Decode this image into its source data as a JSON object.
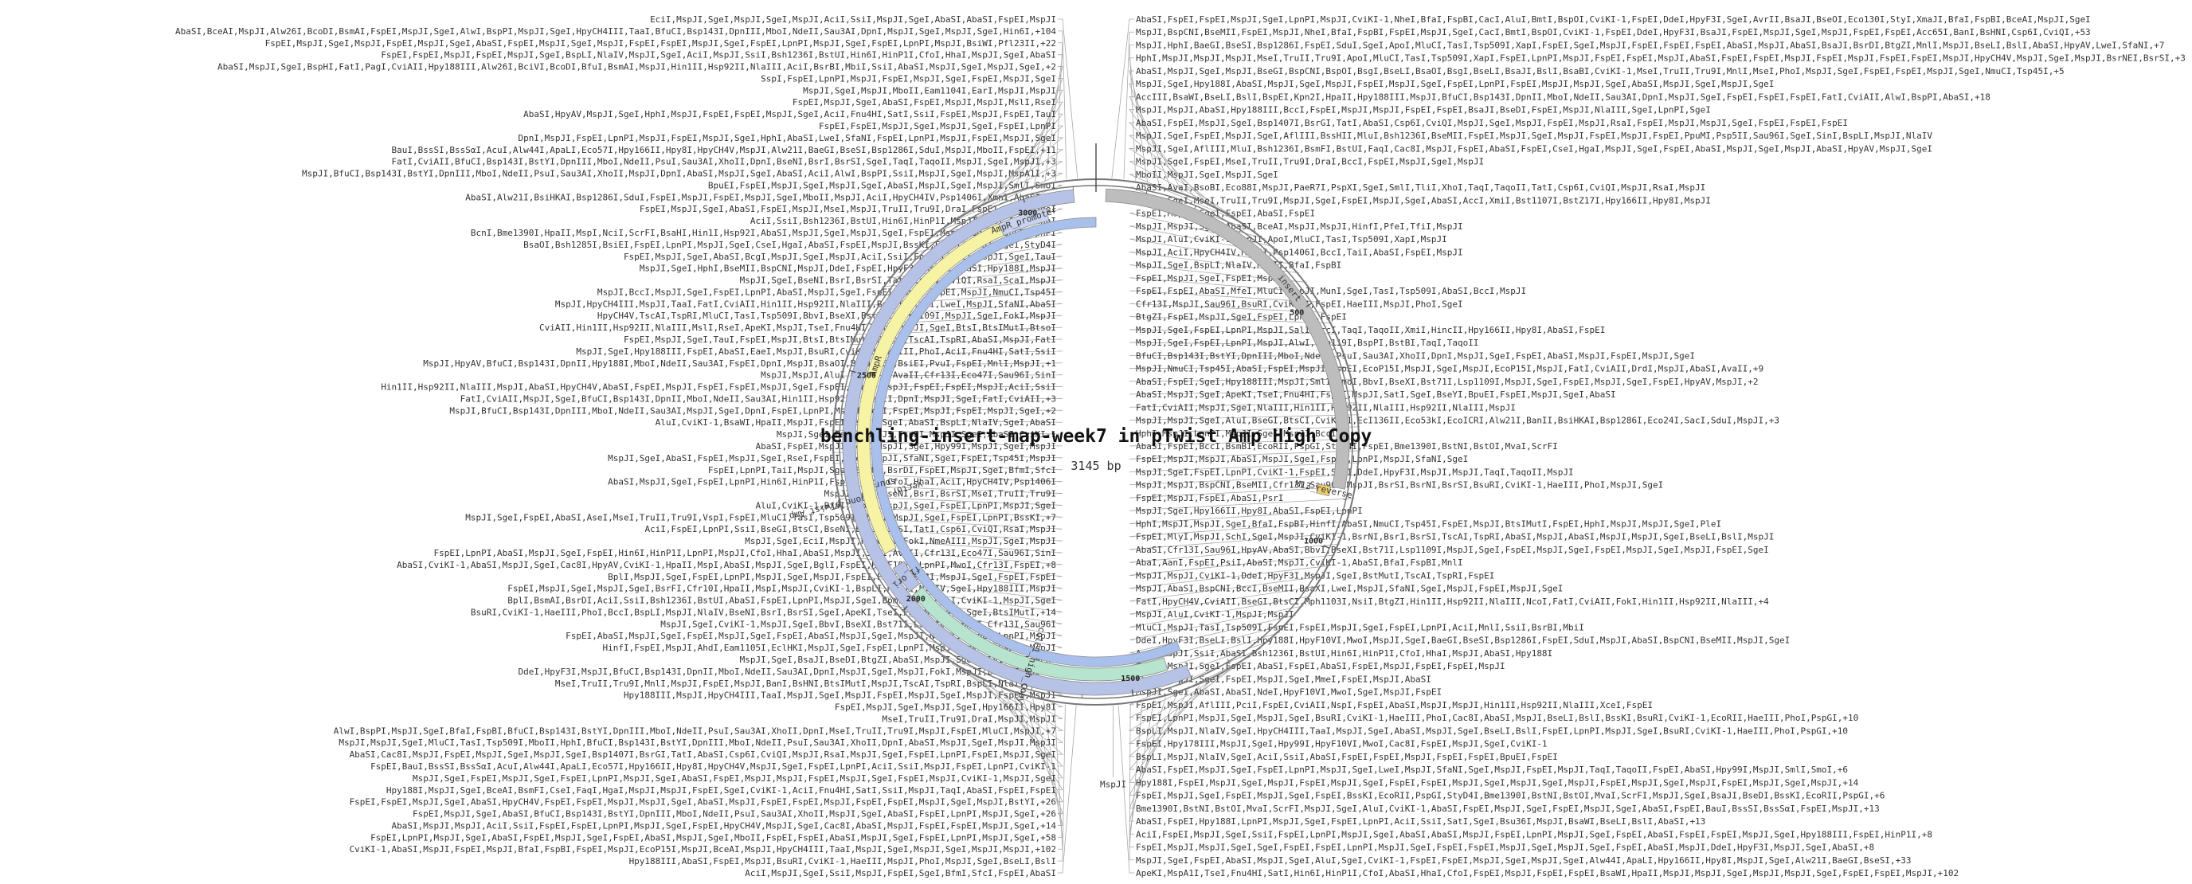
{
  "map": {
    "title": "benchling-insert-map-week7 in pTwist Amp High Copy",
    "length_label": "3145 bp",
    "length_bp": 3145,
    "ticks": [
      {
        "bp": 500,
        "label": "500"
      },
      {
        "bp": 1000,
        "label": "1000"
      },
      {
        "bp": 1500,
        "label": "1500"
      },
      {
        "bp": 2000,
        "label": "2000"
      },
      {
        "bp": 2500,
        "label": "2500"
      },
      {
        "bp": 3000,
        "label": "3000"
      }
    ]
  },
  "colors": {
    "backbone": "#b7c3e6",
    "insert": "#bdbdbd",
    "amp": "#f7f3a4",
    "origin": "#b7e4cf",
    "promoter": "#c9d3ef",
    "source": "#a9c0ec",
    "rev_primer": "#f0cf6a"
  },
  "features": [
    {
      "name": "insert",
      "label": "insert",
      "start": 20,
      "end": 880,
      "track": "outer",
      "color": "#bdbdbd"
    },
    {
      "name": "vector_backbone",
      "label": "vector_backbone_pTwist_Amp",
      "start": 1380,
      "end": 3100,
      "track": "outer",
      "color": "#b7c3e6"
    },
    {
      "name": "source",
      "label": "source",
      "start": 1380,
      "end": 3145,
      "track": "inner2",
      "color": "#a9c0ec"
    },
    {
      "name": "AmpR",
      "label": "AmpR",
      "start": 2115,
      "end": 2935,
      "track": "inner1",
      "color": "#f7f3a4"
    },
    {
      "name": "AmpR_promoter",
      "label": "AmpR_promoter",
      "start": 2935,
      "end": 3040,
      "track": "inner1",
      "color": "#c9d3ef"
    },
    {
      "name": "ori",
      "label": "colE1_high_copy",
      "start": 1420,
      "end": 2010,
      "track": "inner1",
      "color": "#b7e4cf"
    },
    {
      "name": "f1_ori",
      "label": "f1_ori",
      "start": 2020,
      "end": 2080,
      "track": "inner1",
      "color": "#b7c3e6"
    },
    {
      "name": "M13_rev",
      "label": "M13_reverse",
      "start": 880,
      "end": 900,
      "track": "inner1",
      "color": "#f0cf6a"
    }
  ],
  "sites_right": [
    "AbaSI,FspEI,FspEI,MspJI,SgeI,LpnPI,MspJI,CviKI-1,NheI,BfaI,FspBI,CacI,AluI,BmtI,BspOI,CviKI-1,FspEI,DdeI,HpyF3I,SgeI,AvrII,BsaJI,BseOI,Eco130I,StyI,XmaJI,BfaI,FspBI,BceAI,MspJI,SgeI",
    "MspJI,BspCNI,BseMII,FspEI,MspJI,NheI,BfaI,FspBI,FspEI,MspJI,SgeI,CacI,BmtI,BspOI,CviKI-1,FspEI,DdeI,HpyF3I,BsaJI,FspEI,MspJI,SgeI,MspJI,FspEI,FspEI,Acc65I,BanI,BsHNI,Csp6I,CviQI,+53",
    "MspJI,HphI,BaeGI,BseSI,Bsp1286I,FspEI,SduI,SgeI,ApoI,MluCI,TasI,Tsp509I,XapI,FspEI,SgeI,MspJI,FspEI,FspEI,FspEI,AbaSI,MspJI,AbaSI,BsaJI,BsrDI,BtgZI,MnlI,MspJI,BseLI,BslI,AbaSI,HpyAV,LweI,SfaNI,+7",
    "HphI,MspJI,MspJI,MspJI,MseI,TruII,Tru9I,ApoI,MluCI,TasI,Tsp509I,XapI,FspEI,LpnPI,MspJI,FspEI,FspEI,MspJI,AbaSI,FspEI,FspEI,MspJI,FspEI,MspJI,FspEI,FspEI,MspJI,HpyCH4V,MspJI,SgeI,MspJI,BsrNEI,BsrSI,+3",
    "AbaSI,MspJI,SgeI,MspJI,BseGI,BspCNI,BspOI,BsgI,BseLI,BsaOI,BsgI,BseLI,BsaJI,BslI,BsaBI,CviKI-1,MseI,TruII,Tru9I,MnlI,MseI,PhoI,MspJI,SgeI,FspEI,FspEI,MspJI,SgeI,NmuCI,Tsp45I,+5",
    "MspJI,SgeI,Hpy188I,AbaSI,MspJI,SgeI,MspJI,FspEI,MspJI,SgeI,FspEI,LpnPI,FspEI,MspJI,MspJI,SgeI,AbaSI,MspJI,SgeI,MspJI,SgeI",
    "AccIII,BsaWI,BseLI,BslI,BspEI,Kpn2I,HpaII,Hpy188III,MspJI,BfuCI,Bsp143I,DpnII,MboI,NdeII,Sau3AI,DpnI,MspJI,SgeI,FspEI,FspEI,FspEI,FatI,CviAII,AlwI,BspPI,AbaSI,+18",
    "MspJI,MspJI,AbaSI,Hpy188III,BccI,FspEI,MspJI,MspJI,FspEI,FspEI,BsaJI,BseDI,FspEI,MspJI,NlaIII,SgeI,LpnPI,SgeI",
    "AbaSI,FspEI,MspJI,SgeI,Bsp1407I,BsrGI,TatI,AbaSI,Csp6I,CviQI,MspJI,SgeI,MspJI,FspEI,MspJI,RsaI,FspEI,MspJI,MspJI,SgeI,FspEI,FspEI,FspEI",
    "MspJI,SgeI,FspEI,MspJI,SgeI,AflIII,BssHII,MluI,Bsh1236I,BseMII,FspEI,MspJI,SgeI,MspJI,FspEI,MspJI,FspEI,PpuMI,Psp5II,Sau96I,SgeI,SinI,BspLI,MspJI,NlaIV",
    "MspJI,SgeI,AflIII,MluI,Bsh1236I,BsmFI,BstUI,FaqI,Cac8I,MspJI,FspEI,AbaSI,FspEI,CseI,HgaI,MspJI,SgeI,FspEI,AbaSI,MspJI,SgeI,MspJI,AbaSI,HpyAV,MspJI,SgeI",
    "MspJI,SgeI,FspEI,MseI,TruII,Tru9I,DraI,BccI,FspEI,MspJI,SgeI,MspJI",
    "MboII,MspJI,SgeI,MspJI,SgeI",
    "AbaSI,AvaI,BsoBI,Eco88I,MspJI,PaeR7I,PspXI,SgeI,SmlI,TliI,XhoI,TaqI,TaqoII,TatI,Csp6I,CviQI,MspJI,RsaI,MspJI",
    "MspJI,SgeI,MseI,TruII,Tru9I,MspJI,SgeI,FspEI,MspJI,SgeI,AbaSI,AccI,XmiI,Bst1107I,BstZ17I,Hpy166II,Hpy8I,MspJI",
    "FspEI,MspJI,SgeI,FspEI,AbaSI,FspEI",
    "MspJI,MspJI,SgeI,AbaSI,BceAI,MspJI,MspJI,HinfI,PfeI,TfiI,MspJI",
    "MspJI,AluI,CviKI-1,MspJI,ApoI,MluCI,TasI,Tsp509I,XapI,MspJI",
    "MspJI,AciI,HpyCH4IV,MspJI,Psp1406I,BccI,TaiI,AbaSI,FspEI,MspJI",
    "MspJI,SgeI,BspLI,NlaIV,MboII,BfaI,FspBI",
    "FspEI,MspJI,SgeI,FspEI,MspJI",
    "FspEI,FspEI,AbaSI,MfeI,MluCI,MspJI,MunI,SgeI,TasI,Tsp509I,AbaSI,BccI,MspJI",
    "Cfr13I,MspJI,Sau96I,BsuRI,CviKI-1,FspEI,HaeIII,MspJI,PhoI,SgeI",
    "BtgZI,FspEI,MspJI,SgeI,FspEI,LpnPI,FspEI",
    "MspJI,SgeI,FspEI,LpnPI,MspJI,SalI,AccI,TaqI,TaqoII,XmiI,HincII,Hpy166II,Hpy8I,AbaSI,FspEI",
    "MspJI,SgeI,FspEI,LpnPI,MspJI,AlwI,Bsp119I,BspPI,BstBI,TaqI,TaqoII",
    "BfuCI,Bsp143I,BstYI,DpnIII,MboI,NdeII,PsuI,Sau3AI,XhoII,DpnI,MspJI,SgeI,FspEI,AbaSI,MspJI,FspEI,MspJI,SgeI",
    "MspJI,NmuCI,Tsp45I,AbaSI,FspEI,MspJI,FspEI,EcoP15I,MspJI,SgeI,MspJI,EcoP15I,MspJI,FatI,CviAII,DrdI,MspJI,AbaSI,AvaII,+9",
    "AbaSI,FspEI,SgeI,Hpy188III,MspJI,SmlI,SmoI,BbvI,BseXI,Bst71I,Lsp1109I,MspJI,SgeI,FspEI,MspJI,SgeI,FspEI,HpyAV,MspJI,+2",
    "AbaSI,MspJI,SgeI,ApeKI,TseI,Fnu4HI,FspEI,MspJI,SatI,SgeI,BseYI,BpuEI,FspEI,MspJI,SgeI,AbaSI",
    "FatI,CviAII,MspJI,SgeI,NlaIII,Hin1II,Hsp92II,NlaIII,Hsp92II,NlaIII,MspJI",
    "MspJI,MspJI,SgeI,AluI,BseGI,BtsCI,CviKI-1,EcI136II,Eco53kI,EcoICRI,Alw21I,BanII,BsiHKAI,Bsp1286I,Eco24I,SacI,SduI,MspJI,+3",
    "HphI,MspJI,LpnPI,MspJI,SgeI,MspJI,BccI",
    "AbaSI,FspEI,BccI,BsmBI,EcoRII,PspGI,StyD4I,FspEI,Bme1390I,BstNI,BstOI,MvaI,ScrFI",
    "FspEI,MspJI,MspJI,AbaSI,MspJI,SgeI,FspEI,LpnPI,MspJI,SfaNI,SgeI",
    "MspJI,SgeI,FspEI,LpnPI,CviKI-1,FspEI,SgeI,DdeI,HpyF3I,MspJI,MspJI,TaqI,TaqoII,MspJI",
    "MspJI,MspJI,BspCNI,BseMII,Cfr13I,Sau96I,MspJI,BsrSI,BsrNI,BsrSI,BsuRI,CviKI-1,HaeIII,PhoI,MspJI,SgeI",
    "FspEI,MspJI,FspEI,AbaSI,PsrI",
    "MspJI,SgeI,Hpy166II,Hpy8I,AbaSI,FspEI,LpnPI",
    "HphI,MspJI,MspJI,SgeI,BfaI,FspBI,HinfI,AbaSI,NmuCI,Tsp45I,FspEI,MspJI,BtsIMutI,FspEI,HphI,MspJI,MspJI,SgeI,PleI",
    "FspEI,MlyI,MspJI,SchI,SgeI,MspJI,CviKI-1,BsrNI,BsrI,BsrSI,TscAI,TspRI,AbaSI,MspJI,AbaSI,MspJI,MspJI,SgeI,BseLI,BslI,MspJI",
    "AbaSI,Cfr13I,Sau96I,HpyAV,AbaSI,BbvI,BseXI,Bst71I,Lsp1109I,MspJI,SgeI,FspEI,MspJI,SgeI,FspEI,MspJI,SgeI,MspJI,FspEI,SgeI",
    "AbaI,AanI,FspEI,PsiI,AbaSI,MspJI,CviKI-1,AbaSI,BfaI,FspBI,MnlI",
    "MspJI,MspJI,CviKI-1,DdeI,HpyF3I,MspJI,SgeI,BstMutI,TscAI,TspRI,FspEI",
    "MspJI,AbaSI,BspCNI,BccI,BseMII,BsaXI,LweI,MspJI,SfaNI,SgeI,MspJI,FspEI,MspJI,SgeI",
    "FatI,HpyCH4V,CviAII,BseGI,BtsCI,Mph1103I,NsiI,BtgZI,Hin1II,Hsp92II,NlaIII,NcoI,FatI,CviAII,FokI,Hin1II,Hsp92II,NlaIII,+4",
    "MspJI,AluI,CviKI-1,MspJI,MspJI",
    "MluCI,MspJI,TasI,Tsp509I,FspEI,FspEI,MspJI,SgeI,FspEI,LpnPI,AciI,MnlI,SsiI,BsrBI,MbiI",
    "DdeI,HpyF3I,BseLI,BslI,Hpy188I,HpyF10VI,MwoI,MspJI,SgeI,BaeGI,BseSI,Bsp1286I,FspEI,SduI,MspJI,AbaSI,BspCNI,BseMII,MspJI,SgeI",
    "AciI,MspJI,SsiI,AbaSI,Bsh1236I,BstUI,Hin6I,HinP1I,CfoI,HhaI,MspJI,AbaSI,Hpy188I",
    "FspEI,MspJI,SgeI,FspEI,AbaSI,FspEI,AbaSI,FspEI,MspJI,FspEI,FspEI,MspJI",
    "AbaSI,MspJI,SgeI,FspEI,MspJI,SgeI,MmeI,FspEI,MspJI,AbaSI",
    "MspJI,SgeI,AbaSI,AbaSI,NdeI,HpyF10VI,MwoI,SgeI,MspJI,FspEI",
    "FspEI,MspJI,AflIII,PciI,FspEI,CviAII,NspI,FspEI,AbaSI,MspJI,MspJI,Hin1II,Hsp92II,NlaIII,XceI,FspEI",
    "FspEI,LpnPI,MspJI,SgeI,MspJI,SgeI,BsuRI,CviKI-1,HaeIII,PhoI,Cac8I,AbaSI,MspJI,BseLI,BslI,BssKI,BsuRI,CviKI-1,EcoRII,HaeIII,PhoI,PspGI,+10",
    "BspLI,MspJI,NlaIV,SgeI,HpyCH4III,TaaI,MspJI,SgeI,AbaSI,MspJI,SgeI,BseLI,BslI,FspEI,LpnPI,MspJI,SgeI,BsuRI,CviKI-1,HaeIII,PhoI,PspGI,+10",
    "FspEI,Hpy178III,MspJI,SgeI,Hpy99I,HpyF10VI,MwoI,Cac8I,FspEI,MspJI,SgeI,CviKI-1",
    "BspLI,MspJI,NlaIV,SgeI,AciI,SsiI,AbaSI,FspEI,FspEI,MspJI,FspEI,FspEI,BpuEI,FspEI",
    "AbaSI,FspEI,MspJI,SgeI,FspEI,LpnPI,MspJI,SgeI,LweI,MspJI,SfaNI,SgeI,MspJI,FspEI,MspJI,TaqI,TaqoII,FspEI,AbaSI,Hpy99I,MspJI,SmlI,SmoI,+6",
    "Hpy188I,FspEI,MspJI,SgeI,MspJI,FspEI,MspJI,SgeI,FspEI,FspEI,MspJI,SgeI,MspJI,SgeI,MspJI,FspEI,MspJI,SgeI,MspJI,FspEI,MspJI,SgeI,MspJI,+14",
    "FspEI,MspJI,SgeI,FspEI,MspJI,SgeI,FspEI,BssKI,EcoRII,PspGI,StyD4I,Bme1390I,BstNI,BstOI,MvaI,ScrFI,MspJI,SgeI,BsaJI,BseDI,BssKI,EcoRII,PspGI,+6",
    "Bme1390I,BstNI,BstOI,MvaI,ScrFI,MspJI,SgeI,AluI,CviKI-1,AbaSI,FspEI,MspJI,SgeI,FspEI,MspJI,SgeI,AbaSI,FspEI,BauI,BssSI,BssSαI,FspEI,MspJI,+13",
    "AbaSI,FspEI,Hpy188I,LpnPI,MspJI,SgeI,FspEI,LpnPI,AciI,SsiI,SatI,SgeI,Bsu36I,MspJI,BsaWI,BseLI,BslI,AbaSI,+13",
    "AciI,FspEI,MspJI,SgeI,SsiI,FspEI,LpnPI,MspJI,SgeI,AbaSI,AbaSI,MspJI,FspEI,LpnPI,MspJI,SgeI,FspEI,AbaSI,FspEI,FspEI,MspJI,SgeI,Hpy188III,FspEI,HinP1I,+8",
    "FspEI,MspJI,MspJI,SgeI,SgeI,FspEI,FspEI,LpnPI,MspJI,SgeI,FspEI,FspEI,MspJI,SgeI,MspJI,SgeI,FspEI,AbaSI,MspJI,DdeI,HpyF3I,MspJI,SgeI,AbaSI,+8",
    "MspJI,SgeI,FspEI,AbaSI,MspJI,SgeI,AluI,SgeI,CviKI-1,FspEI,FspEI,MspJI,SgeI,MspJI,SgeI,Alw44I,ApaLI,Hpy166II,Hpy8I,MspJI,SgeI,Alw21I,BaeGI,BseSI,+33",
    "ApeKI,MspA1I,TseI,Fnu4HI,SatI,Hin6I,HinP1I,CfoI,AbaSI,HhaI,CfoI,FspEI,MspJI,FspEI,FspEI,BsaWI,HpaII,MspJI,MspJI,SgeI,MspJI,MspJI,SgeI,FspEI,FspEI,MspJI,+102"
  ],
  "sites_left": [
    "EciI,MspJI,SgeI,MspJI,SgeI,MspJI,AciI,SsiI,MspJI,SgeI,AbaSI,AbaSI,FspEI,MspJI",
    "AbaSI,BceAI,MspJI,Alw26I,BcoDI,BsmAI,FspEI,MspJI,SgeI,AlwI,BspPI,MspJI,SgeI,HpyCH4III,TaaI,BfuCI,Bsp143I,DpnIII,MboI,NdeII,Sau3AI,DpnI,MspJI,SgeI,MspJI,SgeI,Hin6I,+104",
    "FspEI,MspJI,SgeI,MspJI,FspEI,MspJI,SgeI,AbaSI,FspEI,MspJI,SgeI,MspJI,FspEI,FspEI,MspJI,SgeI,FspEI,LpnPI,MspJI,SgeI,FspEI,LpnPI,MspJI,BsiWI,Pfl23II,+22",
    "FspEI,FspEI,MspJI,FspEI,MspJI,SgeI,BspLI,NlaIV,MspJI,SgeI,AciI,MspJI,SsiI,Bsh1236I,BstUI,Hin6I,HinP1I,CfoI,HhaI,MspJI,SgeI,AbaSI",
    "AbaSI,MspJI,SgeI,BspHI,FatI,PagI,CviAII,Hpy188III,Alw26I,BciVI,BcoDI,BfuI,BsmAI,MspJI,Hin1II,Hsp92II,NlaIII,AciI,BsrBI,MbiI,SsiI,AbaSI,MspJI,SgeI,MspJI,SgeI,+2",
    "SspI,FspEI,LpnPI,MspJI,FspEI,MspJI,SgeI,FspEI,MspJI,SgeI",
    "MspJI,SgeI,MspJI,MboII,Eam1104I,EarI,MspJI,MspJI",
    "FspEI,MspJI,SgeI,AbaSI,FspEI,MspJI,MspJI,MslI,RseI",
    "AbaSI,HpyAV,MspJI,SgeI,HphI,MspJI,FspEI,FspEI,MspJI,SgeI,AciI,Fnu4HI,SatI,SsiI,FspEI,MspJI,FspEI,TauI",
    "FspEI,FspEI,MspJI,SgeI,MspJI,SgeI,FspEI,LpnPI",
    "DpnI,MspJI,FspEI,LpnPI,MspJI,FspEI,MspJI,SgeI,HphI,AbaSI,LweI,SfaNI,FspEI,LpnPI,MspJI,FspEI,MspJI,SgeI",
    "BauI,BssSI,BssSαI,AcuI,Alw44I,ApaLI,Eco57I,Hpy166II,Hpy8I,HpyCH4V,MspJI,Alw21I,BaeGI,BseSI,Bsp1286I,SduI,MspJI,MboII,FspEI,+11",
    "FatI,CviAII,BfuCI,Bsp143I,BstYI,DpnIII,MboI,NdeII,PsuI,Sau3AI,XhoII,DpnI,BseNI,BsrI,BsrSI,SgeI,TaqI,TaqoII,MspJI,SgeI,MspJI,+3",
    "MspJI,BfuCI,Bsp143I,BstYI,DpnIII,MboI,NdeII,PsuI,Sau3AI,XhoII,MspJI,DpnI,AbaSI,MspJI,SgeI,AbaSI,AciI,AlwI,BspPI,SsiI,MspJI,SgeI,MspJI,MspA1I,+3",
    "BpuEI,FspEI,MspJI,SgeI,MspJI,SgeI,AbaSI,MspJI,SgeI,MspJI,SmlI,SmoI",
    "AbaSI,Alw21I,BsiHKAI,Bsp1286I,SduI,FspEI,MspJI,FspEI,MspJI,SgeI,MboII,MspJI,AciI,HpyCH4IV,Psp1406I,XmnI,AbaSI,+1",
    "FspEI,MspJI,SgeI,AbaSI,FspEI,MspJI,MseI,MspJI,TruII,Tru9I,DraI,FspEI,MspJI,SgeI",
    "AciI,SsiI,Bsh1236I,BstUI,Hin6I,HinP1I,MspJI,SgeI,CfoI,HhaI",
    "BcnI,Bme1390I,HpaII,MspI,NciI,ScrFI,BsaHI,Hin1I,Hsp92I,AbaSI,MspJI,SgeI,MspJI,SgeI,FspEI,MspJI,SgeI,FspEI,LpnPI",
    "BsaOI,Bsh1285I,BsiEI,FspEI,LpnPI,MspJI,SgeI,CseI,HgaI,AbaSI,FspEI,MspJI,BssKI,FspEI,MspJI,SgeI,StyD4I",
    "FspEI,MspJI,SgeI,AbaSI,BcgI,MspJI,SgeI,MspJI,AciI,SsiI,Fnu4HI,SatI,MspJI,SgeI,TauI",
    "MspJI,SgeI,HphI,BseMII,BspCNI,MspJI,DdeI,FspEI,HpyF3I,MspJI,AbaSI,Hpy188I,MspJI",
    "MspJI,SgeI,BseNI,BsrI,BsrSI,TatI,Csp6I,CviQI,RsaI,ScaI,MspJI",
    "MspJI,BccI,MspJI,SgeI,FspEI,LpnPI,AbaSI,MspJI,SgeI,FspEI,MspJI,FspEI,MspJI,NmuCI,Tsp45I",
    "MspJI,HpyCH4III,MspJI,TaaI,FatI,CviAII,Hin1II,Hsp92II,NlaIII,BseGI,BtsCI,LweI,MspJI,SfaNI,AbaSI",
    "HpyCH4V,TscAI,TspRI,MluCI,TasI,Tsp509I,BbvI,BseXI,Bst71I,Lsp1109I,MspJI,SgeI,FokI,MspJI",
    "CviAII,Hin1II,Hsp92II,NlaIII,MslI,RseI,ApeKI,MspJI,TseI,Fnu4HI,SatI,MspJI,SgeI,BtsI,BtsIMutI,BtsoI",
    "FspEI,MspJI,SgeI,TauI,FspEI,MspJI,BtsI,BtsIMutI,BtsoI,TscAI,TspRI,AbaSI,MspJI,FatI",
    "MspJI,SgeI,Hpy188III,FspEI,AbaSI,EaeI,MspJI,BsuRI,CviKI-1,HaeIII,PhoI,AciI,Fnu4HI,SatI,SsiI",
    "MspJI,HpyAV,BfuCI,Bsp143I,DpnII,Hpy188I,MboI,NdeII,Sau3AI,FspEI,DpnI,MspJI,BsaOI,Bsh1285I,BsiEI,PvuI,FspEI,MnlI,MspJI,+1",
    "MspJI,MspJI,AluI,CviKI-1,AvaII,Cfr13I,Eco47I,Sau96I,SinI",
    "Hin1II,Hsp92II,NlaIII,MspJI,AbaSI,HpyCH4V,AbaSI,FspEI,MspJI,FspEI,FspEI,MspJI,SgeI,FspEI,LpnPI,MspJI,FspEI,FspEI,MspJI,AciI,SsiI",
    "FatI,CviAII,MspJI,SgeI,BfuCI,Bsp143I,DpnII,MboI,NdeII,Sau3AI,Hin1II,Hsp92II,NlaIII,DpnI,MspJI,SgeI,FatI,CviAII,+3",
    "MspJI,BfuCI,Bsp143I,DpnIII,MboI,NdeII,Sau3AI,MspJI,SgeI,DpnI,FspEI,LpnPI,MspJI,SgeI,FspEI,MspJI,FspEI,MspJI,SgeI,+2",
    "AluI,CviKI-1,BsaWI,HpaII,MspJI,FspEI,MspJI,SgeI,AbaSI,BspLI,NlaIV,SgeI,AbaSI",
    "MspJI,SgeI,FspEI,MspJI,FspEI,MspJI,SgeI,AbaSI,CviKI-1",
    "AbaSI,FspEI,MspJI,SgeI,MspJI,SgeI,Hpy99I,MspJI,SgeI,MspJI",
    "MspJI,SgeI,AbaSI,FspEI,MspJI,SgeI,RseI,FspEI,LweI,MspJI,SfaNI,SgeI,FspEI,Tsp45I,MspJI",
    "FspEI,LpnPI,TaiI,MspJI,SgeI,BseMI,BsrDI,FspEI,MspJI,SgeI,BfmI,SfcI",
    "AbaSI,MspJI,SgeI,FspEI,LpnPI,Hin6I,HinP1I,FspEI,NsbI,CfoI,HhaI,AciI,HpyCH4IV,Psp1406I",
    "MspJI,SgeI,BseNI,BsrI,BsrSI,MseI,TruII,Tru9I",
    "AluI,CviKI-1,BfaI,FspBI,MspJI,SgeI,FspEI,LpnPI,MspJI,SgeI",
    "MspJI,SgeI,FspEI,AbaSI,AseI,MseI,TruII,Tru9I,VspI,FspEI,MluCI,TasI,Tsp509I,AbaSI,MspJI,SgeI,FspEI,LpnPI,BssKI,+7",
    "AciI,FspEI,LpnPI,SsiI,BseGI,BtsCI,BseNI,BsrI,BsrSI,TatI,Csp6I,CviQI,RsaI,MspJI",
    "MspJI,SgeI,EciI,MspJI,HpyCH4V,FokI,NmeAIII,MspJI,SgeI,MspJI",
    "FspEI,LpnPI,AbaSI,MspJI,SgeI,FspEI,Hin6I,HinP1I,LpnPI,MspJI,CfoI,HhaI,AbaSI,MspJI,SgeI,AvaII,Cfr13I,Eco47I,Sau96I,SinI",
    "AbaSI,CviKI-1,AbaSI,MspJI,SgeI,Cac8I,HpyAV,CviKI-1,HpaII,MspI,AbaSI,MspJI,SgeI,BglI,FspEI,HpyF10VI,LpnPI,MwoI,Cfr13I,FspEI,+8",
    "BplI,MspJI,SgeI,FspEI,LpnPI,MspJI,SgeI,MspJI,FspEI,FspEI,MspJI,MspJI,SgeI,FspEI,FspEI",
    "FspEI,MspJI,SgeI,MspJI,SgeI,BsrFI,Cfr10I,HpaII,MspI,MspJI,CviKI-1,BspLI,MspJI,NlaIV,SgeI,Hpy188III,MspJI",
    "BplI,BsmAI,BsrDI,AciI,SsiI,Bsh1236I,BstUI,AbaSI,FspEI,LpnPI,MspJI,SgeI,BpmI,GsuI,HphI,CviKI-1,MspJI,SgeI",
    "BsuRI,CviKI-1,HaeIII,PhoI,BccI,BspLI,MspJI,NlaIV,BseNI,BsrI,BsrSI,SgeI,ApeKI,TseI,Fnu4HI,SatI,SgeI,BtsIMutI,+14",
    "MspJI,SgeI,CviKI-1,MspJI,SgeI,BbvI,BseXI,Bst71I,Lsp1109I,BmrI,Cfr13I,Sau96I",
    "FspEI,AbaSI,MspJI,SgeI,FspEI,MspJI,SgeI,FspEI,AbaSI,MspJI,SgeI,MspJI,NlaIII,FspEI,LpnPI,MspJI",
    "HinfI,FspEI,MspJI,AhdI,Eam1105I,EclHKI,MspJI,SgeI,FspEI,LpnPI,MspJI,Hpy99I,FspEI,MspJI",
    "MspJI,SgeI,BsaJI,BseDI,BtgZI,AbaSI,MspJI,SgeI,MlyI,PleI,SchI",
    "DdeI,HpyF3I,MspJI,BfuCI,Bsp143I,DpnII,MboI,NdeII,Sau3AI,DpnI,MspJI,SgeI,MspJI,FokI,MspJI,BspCNI,BseMII",
    "MseI,TruII,Tru9I,MnlI,MspJI,FspEI,MspJI,BanI,BsHNI,BtsIMutI,MspJI,TscAI,TspRI,BspLI,NlaIV,AbaSI",
    "Hpy188III,MspJI,HpyCH4III,TaaI,MspJI,SgeI,MspJI,FspEI,MspJI,SgeI,MspJI,FspEI,MspJI",
    "FspEI,MspJI,SgeI,MspJI,SgeI,Hpy166II,Hpy8I",
    "MseI,TruII,Tru9I,DraI,MspJI,MspJI",
    "AlwI,BspPI,MspJI,SgeI,BfaI,FspBI,BfuCI,Bsp143I,BstYI,DpnIII,MboI,NdeII,PsuI,Sau3AI,XhoII,DpnI,MseI,TruII,Tru9I,MspJI,FspEI,MluCI,MspJI,+7",
    "MspJI,MspJI,SgeI,MluCI,TasI,Tsp509I,MboII,HphI,BfuCI,Bsp143I,BstYI,DpnIII,MboI,NdeII,PsuI,Sau3AI,XhoII,DpnI,AbaSI,MspJI,SgeI,MspJI,MspJI",
    "AbaSI,Cac8I,MspJI,FspEI,MspJI,SgeI,MspJI,SgeI,Bsp1407I,BsrGI,TatI,AbaSI,Csp6I,CviQI,MspJI,RsaI,MspJI,SgeI,FspEI,LpnPI,FspEI,MspJI,SgeI",
    "FspEI,BauI,BssSI,BssSαI,AcuI,Alw44I,ApaLI,Eco57I,Hpy166II,Hpy8I,HpyCH4V,MspJI,SgeI,FspEI,LpnPI,AciI,SsiI,MspJI,FspEI,LpnPI,CviKI-1",
    "MspJI,SgeI,FspEI,MspJI,SgeI,FspEI,LpnPI,MspJI,SgeI,AbaSI,FspEI,MspJI,MspJI,FspEI,MspJI,SgeI,FspEI,MspJI,CviKI-1,MspJI,SgeI",
    "Hpy188I,MspJI,SgeI,BceAI,BsmFI,CseI,FaqI,HgaI,MspJI,MspJI,FspEI,SgeI,CviKI-1,AciI,Fnu4HI,SatI,SsiI,MspJI,TaqI,AbaSI,FspEI,FspEI",
    "FspEI,FspEI,MspJI,SgeI,AbaSI,HpyCH4V,FspEI,FspEI,MspJI,MspJI,SgeI,AbaSI,MspJI,FspEI,FspEI,MspJI,FspEI,FspEI,MspJI,SgeI,MspJI,BstYI,+26",
    "FspEI,MspJI,SgeI,AbaSI,BfuCI,Bsp143I,BstYI,DpnIII,MboI,NdeII,PsuI,Sau3AI,XhoII,MspJI,SgeI,AbaSI,FspEI,LpnPI,MspJI,SgeI,+26",
    "AbaSI,MspJI,MspJI,AciI,SsiI,FspEI,FspEI,LpnPI,MspJI,SgeI,FspEI,HpyCH4V,MspJI,SgeI,Cac8I,AbaSI,MspJI,FspEI,FspEI,MspJI,SgeI,+14",
    "FspEI,LpnPI,MspJI,SgeI,AbaSI,FspEI,MspJI,SgeI,FspEI,AbaSI,MspJI,SgeI,MboII,FspEI,FspEI,AbaSI,MspJI,SgeI,FspEI,LpnPI,MspJI,SgeI,+58",
    "CviKI-1,AbaSI,MspJI,FspEI,MspJI,BfaI,FspBI,FspEI,MspJI,EcoP15I,MspJI,BceAI,MspJI,HpyCH4III,TaaI,MspJI,SgeI,MspJI,SgeI,MspJI,MspJI,+102",
    "Hpy188III,AbaSI,FspEI,MspJI,BsuRI,CviKI-1,HaeIII,MspJI,PhoI,MspJI,SgeI,BseLI,BslI",
    "AciI,MspJI,SgeI,SsiI,MspJI,FspEI,SgeI,BfmI,SfcI,FspEI,AbaSI"
  ],
  "sites_bottom": [
    "MspJI"
  ]
}
